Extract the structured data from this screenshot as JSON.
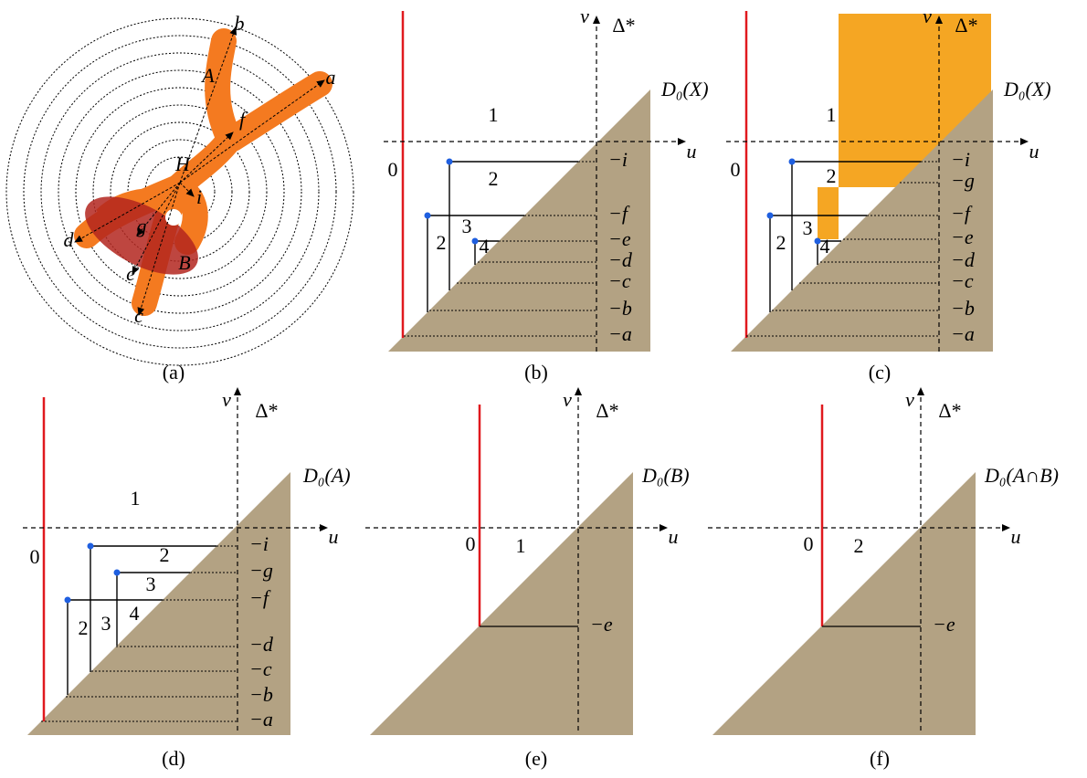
{
  "panels": [
    {
      "caption": "(a)",
      "labels": [
        "a",
        "b",
        "c",
        "d",
        "e",
        "f",
        "g",
        "H",
        "i",
        "A",
        "B"
      ]
    },
    {
      "caption": "(b)",
      "axis_labels": [
        "v",
        "Δ*",
        "u"
      ],
      "diagram": "D₀(X)",
      "region_labels": [
        "0",
        "1",
        "2",
        "2",
        "3",
        "4"
      ],
      "level_labels": [
        "−i",
        "−f",
        "−e",
        "−d",
        "−c",
        "−b",
        "−a"
      ]
    },
    {
      "caption": "(c)",
      "axis_labels": [
        "v",
        "Δ*",
        "u"
      ],
      "diagram": "D₀(X)",
      "region_labels": [
        "0",
        "1",
        "2",
        "2",
        "3",
        "4"
      ],
      "level_labels": [
        "−i",
        "−g",
        "−f",
        "−e",
        "−d",
        "−c",
        "−b",
        "−a"
      ]
    },
    {
      "caption": "(d)",
      "axis_labels": [
        "v",
        "Δ*",
        "u"
      ],
      "diagram": "D₀(A)",
      "region_labels": [
        "0",
        "1",
        "2",
        "3",
        "4",
        "2",
        "3"
      ],
      "level_labels": [
        "−i",
        "−g",
        "−f",
        "−d",
        "−c",
        "−b",
        "−a"
      ]
    },
    {
      "caption": "(e)",
      "axis_labels": [
        "v",
        "Δ*",
        "u"
      ],
      "diagram": "D₀(B)",
      "region_labels": [
        "0",
        "1"
      ],
      "level_labels": [
        "−e"
      ]
    },
    {
      "caption": "(f)",
      "axis_labels": [
        "v",
        "Δ*",
        "u"
      ],
      "diagram": "D₀(A∩B)",
      "region_labels": [
        "0",
        "2"
      ],
      "level_labels": [
        "−e"
      ]
    }
  ]
}
